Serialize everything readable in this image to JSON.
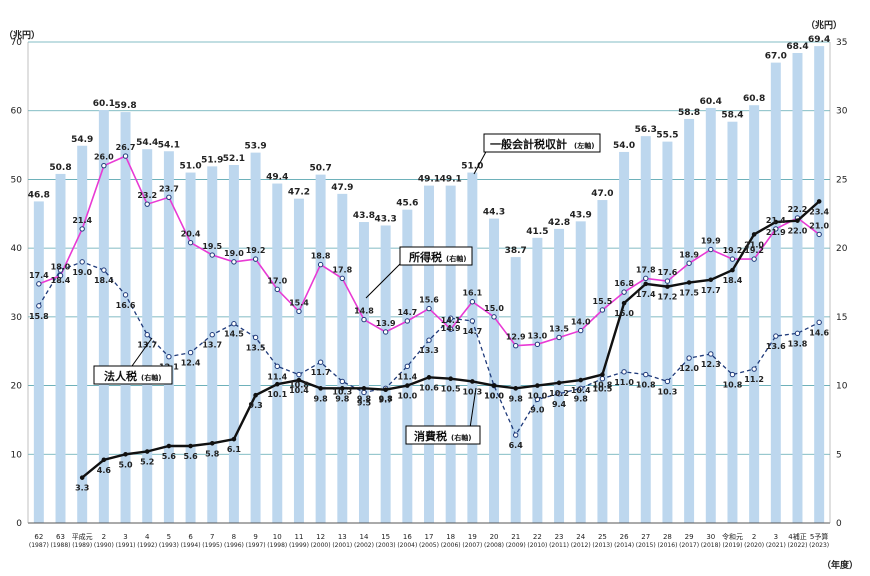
{
  "chart_data": {
    "type": "bar",
    "units": {
      "left": "（兆円）",
      "right": "（兆円）",
      "x": "（年度）"
    },
    "left_axis": {
      "ylim": [
        0,
        70
      ],
      "ticks": [
        0,
        10,
        20,
        30,
        40,
        50,
        60,
        70
      ]
    },
    "right_axis": {
      "ylim": [
        0,
        35
      ],
      "ticks": [
        0,
        5,
        10,
        15,
        20,
        25,
        30,
        35
      ]
    },
    "categories": [
      {
        "label": "62",
        "sub": "(1987)"
      },
      {
        "label": "63",
        "sub": "(1988)"
      },
      {
        "label": "平成元",
        "sub": "(1989)"
      },
      {
        "label": "2",
        "sub": "(1990)"
      },
      {
        "label": "3",
        "sub": "(1991)"
      },
      {
        "label": "4",
        "sub": "(1992)"
      },
      {
        "label": "5",
        "sub": "(1993)"
      },
      {
        "label": "6",
        "sub": "(1994)"
      },
      {
        "label": "7",
        "sub": "(1995)"
      },
      {
        "label": "8",
        "sub": "(1996)"
      },
      {
        "label": "9",
        "sub": "(1997)"
      },
      {
        "label": "10",
        "sub": "(1998)"
      },
      {
        "label": "11",
        "sub": "(1999)"
      },
      {
        "label": "12",
        "sub": "(2000)"
      },
      {
        "label": "13",
        "sub": "(2001)"
      },
      {
        "label": "14",
        "sub": "(2002)"
      },
      {
        "label": "15",
        "sub": "(2003)"
      },
      {
        "label": "16",
        "sub": "(2004)"
      },
      {
        "label": "17",
        "sub": "(2005)"
      },
      {
        "label": "18",
        "sub": "(2006)"
      },
      {
        "label": "19",
        "sub": "(2007)"
      },
      {
        "label": "20",
        "sub": "(2008)"
      },
      {
        "label": "21",
        "sub": "(2009)"
      },
      {
        "label": "22",
        "sub": "(2010)"
      },
      {
        "label": "23",
        "sub": "(2011)"
      },
      {
        "label": "24",
        "sub": "(2012)"
      },
      {
        "label": "25",
        "sub": "(2013)"
      },
      {
        "label": "26",
        "sub": "(2014)"
      },
      {
        "label": "27",
        "sub": "(2015)"
      },
      {
        "label": "28",
        "sub": "(2016)"
      },
      {
        "label": "29",
        "sub": "(2017)"
      },
      {
        "label": "30",
        "sub": "(2018)"
      },
      {
        "label": "令和元",
        "sub": "(2019)"
      },
      {
        "label": "2",
        "sub": "(2020)"
      },
      {
        "label": "3",
        "sub": "(2021)"
      },
      {
        "label": "4補正",
        "sub": "(2022)"
      },
      {
        "label": "5予算",
        "sub": "(2023)"
      }
    ],
    "series": [
      {
        "name": "一般会計税収計",
        "axis_note": "(左軸)",
        "axis": "left",
        "type": "bar",
        "color": "#bdd7ee",
        "values": [
          46.8,
          50.8,
          54.9,
          60.1,
          59.8,
          54.4,
          54.1,
          51.0,
          51.9,
          52.1,
          53.9,
          49.4,
          47.2,
          50.7,
          47.9,
          43.8,
          43.3,
          45.6,
          49.1,
          49.1,
          51.0,
          44.3,
          38.7,
          41.5,
          42.8,
          43.9,
          47.0,
          54.0,
          56.3,
          55.5,
          58.8,
          60.4,
          58.4,
          60.8,
          67.0,
          68.4,
          69.4
        ]
      },
      {
        "name": "所得税",
        "axis_note": "(右軸)",
        "axis": "right",
        "type": "line",
        "color": "#e83ad4",
        "values": [
          17.4,
          18.0,
          21.4,
          26.0,
          26.7,
          23.2,
          23.7,
          20.4,
          19.5,
          19.0,
          19.2,
          17.0,
          15.4,
          18.8,
          17.8,
          14.8,
          13.9,
          14.7,
          15.6,
          14.1,
          16.1,
          15.0,
          12.9,
          13.0,
          13.5,
          14.0,
          15.5,
          16.8,
          17.8,
          17.6,
          18.9,
          19.9,
          19.2,
          19.2,
          21.4,
          22.2,
          21.0
        ]
      },
      {
        "name": "法人税",
        "axis_note": "(右軸)",
        "axis": "right",
        "type": "line",
        "dashed": true,
        "color": "#1f3a7a",
        "values": [
          15.8,
          18.4,
          19.0,
          18.4,
          16.6,
          13.7,
          12.1,
          12.4,
          13.7,
          14.5,
          13.5,
          11.4,
          10.8,
          11.7,
          10.3,
          9.5,
          9.8,
          11.4,
          13.3,
          14.9,
          14.7,
          10.0,
          6.4,
          9.0,
          9.4,
          9.8,
          10.5,
          11.0,
          10.8,
          10.3,
          12.0,
          12.3,
          10.8,
          11.2,
          13.6,
          13.8,
          14.6
        ]
      },
      {
        "name": "消費税",
        "axis_note": "(右軸)",
        "axis": "right",
        "type": "line",
        "color": "#111111",
        "start_index": 2,
        "values": [
          null,
          null,
          3.3,
          4.6,
          5.0,
          5.2,
          5.6,
          5.6,
          5.8,
          6.1,
          9.3,
          10.1,
          10.4,
          9.8,
          9.8,
          9.8,
          9.7,
          10.0,
          10.6,
          10.5,
          10.3,
          10.0,
          9.8,
          10.0,
          10.2,
          10.4,
          10.8,
          16.0,
          17.4,
          17.2,
          17.5,
          17.7,
          18.4,
          21.0,
          21.9,
          22.0,
          23.4
        ]
      }
    ],
    "callouts": {
      "total": {
        "text": "一般会計税収計",
        "note": "(左軸)"
      },
      "income": {
        "text": "所得税",
        "note": "(右軸)"
      },
      "corporate": {
        "text": "法人税",
        "note": "(右軸)"
      },
      "consumption": {
        "text": "消費税",
        "note": "(右軸)"
      }
    }
  }
}
